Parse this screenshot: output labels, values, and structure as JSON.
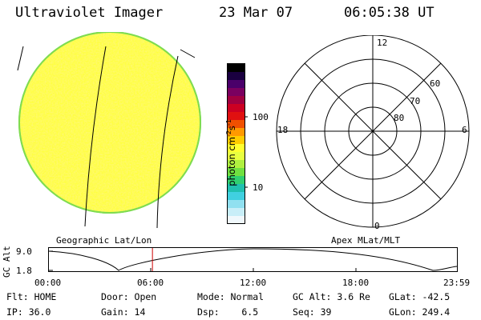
{
  "header": {
    "instrument": "Ultraviolet Imager",
    "date": "23 Mar 07",
    "time": "06:05:38 UT"
  },
  "colorbar": {
    "unit_label": "photon cm",
    "unit_exp1": "-2",
    "unit_mid": "s",
    "unit_exp2": "-1",
    "tick_100": "100",
    "tick_10": "10",
    "colors": [
      "#000000",
      "#1a0040",
      "#4a006a",
      "#7a0060",
      "#a00040",
      "#cc0022",
      "#e01010",
      "#f05000",
      "#ff9900",
      "#ffcc00",
      "#ffff30",
      "#e8ff40",
      "#b0f040",
      "#70e040",
      "#30d070",
      "#20c0b0",
      "#40d0e0",
      "#90e0f0",
      "#c8eef8",
      "#f0f8fc"
    ]
  },
  "geo_panel": {
    "label": "Geographic Lat/Lon"
  },
  "polar_panel": {
    "label": "Apex MLat/MLT",
    "mlt_top": "12",
    "mlt_left": "18",
    "mlt_right": "6",
    "mlt_bottom": "0",
    "lat_60": "60",
    "lat_70": "70",
    "lat_80": "80"
  },
  "altitude_plot": {
    "ylabel": "GC Alt",
    "y_top": "9.0",
    "y_bottom": "1.8",
    "xticks": [
      "00:00",
      "06:00",
      "12:00",
      "18:00",
      "23:59"
    ],
    "current_time_hours": 6.09
  },
  "status": {
    "flt": "Flt: HOME",
    "ip": "IP: 36.0",
    "door": "Door: Open",
    "gain": "Gain: 14",
    "mode": "Mode: Normal",
    "dsp": "Dsp:    6.5",
    "gc_alt": "GC Alt: 3.6 Re",
    "seq": "Seq: 39",
    "glat": "GLat: -42.5",
    "glon": "GLon: 249.4"
  }
}
